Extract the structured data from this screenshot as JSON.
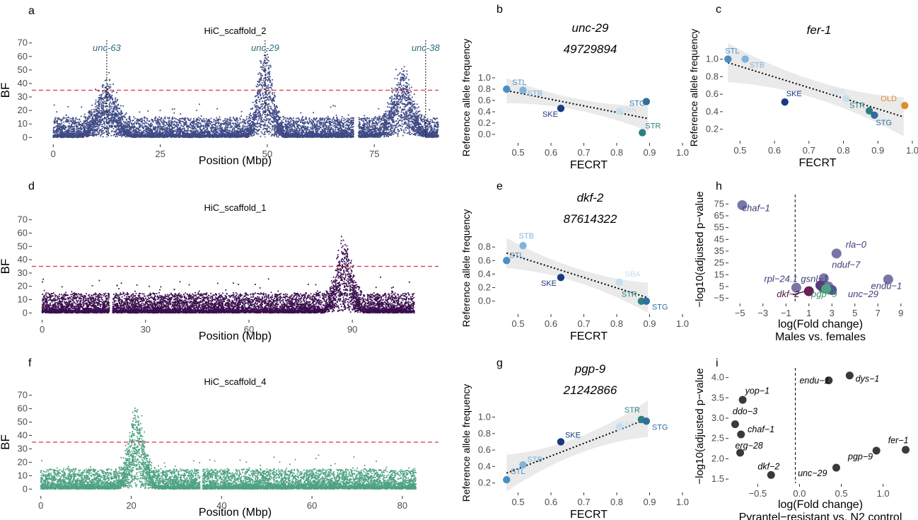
{
  "chart_data": [
    {
      "panel": "a",
      "type": "scatter",
      "title": "HiC_scaffold_2",
      "xlabel": "Position (Mbp)",
      "ylabel": "BF",
      "xlim": [
        -5,
        90
      ],
      "ylim": [
        -3,
        73
      ],
      "xticks": [
        0,
        25,
        50,
        75
      ],
      "yticks": [
        0,
        10,
        20,
        30,
        40,
        50,
        60,
        70
      ],
      "threshold": 35,
      "color": "#3f4a85",
      "gaps": [
        [
          70.2,
          71.3
        ]
      ],
      "xmax": 90,
      "peaks": [
        {
          "pos": 49.5,
          "height": 63
        },
        {
          "pos": 81.5,
          "height": 45
        },
        {
          "pos": 12.5,
          "height": 35
        }
      ],
      "annotations": [
        {
          "label": "unc-63",
          "x": 12.5
        },
        {
          "label": "unc-29",
          "x": 49.5
        },
        {
          "label": "unc-38",
          "x": 87
        }
      ],
      "ann_color": "#2a6e7c"
    },
    {
      "panel": "d",
      "type": "scatter",
      "title": "HiC_scaffold_1",
      "xlabel": "Position (Mbp)",
      "ylabel": "BF",
      "xlim": [
        -3,
        115
      ],
      "ylim": [
        -3,
        73
      ],
      "xticks": [
        0,
        30,
        60,
        90
      ],
      "yticks": [
        0,
        10,
        20,
        30,
        40,
        50,
        60,
        70
      ],
      "threshold": 35,
      "color": "#3b0f4f",
      "gaps": [
        [
          19.5,
          20.5
        ]
      ],
      "xmax": 108,
      "peaks": [
        {
          "pos": 87.6,
          "height": 50
        }
      ],
      "annotations": []
    },
    {
      "panel": "f",
      "type": "scatter",
      "title": "HiC_scaffold_4",
      "xlabel": "Position (Mbp)",
      "ylabel": "BF",
      "xlim": [
        -2,
        88
      ],
      "ylim": [
        -3,
        73
      ],
      "xticks": [
        0,
        20,
        40,
        60,
        80
      ],
      "yticks": [
        0,
        10,
        20,
        30,
        40,
        50,
        60,
        70
      ],
      "threshold": 35,
      "color": "#4fa383",
      "gaps": [
        [
          35.2,
          35.8
        ]
      ],
      "xmax": 83,
      "peaks": [
        {
          "pos": 21.2,
          "height": 58
        }
      ],
      "annotations": []
    },
    {
      "panel": "b",
      "type": "scatter",
      "title": "unc-29",
      "subtitle": "49729894",
      "xlabel": "FECRT",
      "ylabel": "Reference allele frequency",
      "xlim": [
        0.43,
        1.0
      ],
      "ylim": [
        -0.1,
        1.25
      ],
      "xticks": [
        0.5,
        0.6,
        0.7,
        0.8,
        0.9,
        1.0
      ],
      "xticklabels": [
        "0.5",
        "0.6",
        "0.7",
        "0.8",
        "0.9",
        "1.0"
      ],
      "yticks": [
        0.0,
        0.2,
        0.4,
        0.6,
        0.8,
        1.0
      ],
      "yticklabels": [
        "0.0",
        "0.2",
        "0.4",
        "0.6",
        "0.8",
        "1.0"
      ],
      "fit": {
        "x0": 0.465,
        "y0": 0.775,
        "x1": 0.895,
        "y1": 0.28
      },
      "points": [
        {
          "label": "STL",
          "x": 0.465,
          "y": 0.8,
          "color": "#4a8fc2",
          "dx": 8,
          "dy": -6
        },
        {
          "label": "STB",
          "x": 0.515,
          "y": 0.78,
          "color": "#7fb4d9",
          "dx": 6,
          "dy": 8
        },
        {
          "label": "SKE",
          "x": 0.63,
          "y": 0.46,
          "color": "#1a3a80",
          "dx": -26,
          "dy": 12
        },
        {
          "label": "SBA",
          "x": 0.808,
          "y": 0.41,
          "color": "#c6dff0",
          "dx": 2,
          "dy": 2
        },
        {
          "label": "STG",
          "x": 0.89,
          "y": 0.58,
          "color": "#2f6f9f",
          "dx": -24,
          "dy": 6
        },
        {
          "label": "STR",
          "x": 0.878,
          "y": 0.03,
          "color": "#2d7f82",
          "dx": 4,
          "dy": -6
        }
      ]
    },
    {
      "panel": "c",
      "type": "scatter",
      "title": "fer-1",
      "subtitle": "",
      "xlabel": "FECRT",
      "ylabel": "Reference allele frequency",
      "xlim": [
        0.45,
        1.0
      ],
      "ylim": [
        0.1,
        1.15
      ],
      "xticks": [
        0.5,
        0.6,
        0.7,
        0.8,
        0.9,
        1.0
      ],
      "xticklabels": [
        "0.5",
        "0.6",
        "0.7",
        "0.8",
        "0.9",
        "1.0"
      ],
      "yticks": [
        0.2,
        0.4,
        0.6,
        0.8,
        1.0
      ],
      "yticklabels": [
        "0.2",
        "0.4",
        "0.6",
        "0.8",
        "1.0"
      ],
      "fit": {
        "x0": 0.465,
        "y0": 0.96,
        "x1": 0.975,
        "y1": 0.34
      },
      "points": [
        {
          "label": "STL",
          "x": 0.465,
          "y": 1.0,
          "color": "#4a8fc2",
          "dx": -4,
          "dy": -8
        },
        {
          "label": "STB",
          "x": 0.515,
          "y": 1.0,
          "color": "#7fb4d9",
          "dx": 6,
          "dy": 12
        },
        {
          "label": "SKE",
          "x": 0.63,
          "y": 0.51,
          "color": "#1a3a80",
          "dx": 2,
          "dy": -8
        },
        {
          "label": "SBA",
          "x": 0.808,
          "y": 0.55,
          "color": "#c6dff0",
          "dx": -24,
          "dy": -6
        },
        {
          "label": "STR",
          "x": 0.875,
          "y": 0.41,
          "color": "#2d7f82",
          "dx": -28,
          "dy": -4
        },
        {
          "label": "STG",
          "x": 0.89,
          "y": 0.36,
          "color": "#2f6f9f",
          "dx": 2,
          "dy": 14
        },
        {
          "label": "OLD",
          "x": 0.978,
          "y": 0.47,
          "color": "#e08c2e",
          "dx": -34,
          "dy": -6
        }
      ]
    },
    {
      "panel": "e",
      "type": "scatter",
      "title": "dkf-2",
      "subtitle": "87614322",
      "xlabel": "FECRT",
      "ylabel": "Reference allele frequency",
      "xlim": [
        0.43,
        1.0
      ],
      "ylim": [
        -0.15,
        1.0
      ],
      "xticks": [
        0.5,
        0.6,
        0.7,
        0.8,
        0.9,
        1.0
      ],
      "xticklabels": [
        "0.5",
        "0.6",
        "0.7",
        "0.8",
        "0.9",
        "1.0"
      ],
      "yticks": [
        0.0,
        0.2,
        0.4,
        0.6,
        0.8
      ],
      "yticklabels": [
        "0.0",
        "0.2",
        "0.4",
        "0.6",
        "0.8"
      ],
      "fit": {
        "x0": 0.465,
        "y0": 0.71,
        "x1": 0.895,
        "y1": 0.05
      },
      "points": [
        {
          "label": "STB",
          "x": 0.515,
          "y": 0.82,
          "color": "#7fb4d9",
          "dx": -6,
          "dy": -10
        },
        {
          "label": "STL",
          "x": 0.465,
          "y": 0.6,
          "color": "#4a8fc2",
          "dx": 4,
          "dy": -4
        },
        {
          "label": "SKE",
          "x": 0.63,
          "y": 0.35,
          "color": "#1a3a80",
          "dx": -28,
          "dy": 12
        },
        {
          "label": "SBA",
          "x": 0.808,
          "y": 0.28,
          "color": "#c6dff0",
          "dx": 8,
          "dy": -8
        },
        {
          "label": "STR",
          "x": 0.875,
          "y": 0.0,
          "color": "#2d7f82",
          "dx": -28,
          "dy": -6
        },
        {
          "label": "STG",
          "x": 0.89,
          "y": 0.0,
          "color": "#2f6f9f",
          "dx": 8,
          "dy": 12
        }
      ]
    },
    {
      "panel": "g",
      "type": "scatter",
      "title": "pgp-9",
      "subtitle": "21242866",
      "xlabel": "FECRT",
      "ylabel": "Reference allele frequency",
      "xlim": [
        0.43,
        1.0
      ],
      "ylim": [
        0.12,
        1.15
      ],
      "xticks": [
        0.5,
        0.6,
        0.7,
        0.8,
        0.9,
        1.0
      ],
      "xticklabels": [
        "0.5",
        "0.6",
        "0.7",
        "0.8",
        "0.9",
        "1.0"
      ],
      "yticks": [
        0.2,
        0.4,
        0.6,
        0.8,
        1.0
      ],
      "yticklabels": [
        "0.2",
        "0.4",
        "0.6",
        "0.8",
        "1.0"
      ],
      "fit": {
        "x0": 0.465,
        "y0": 0.32,
        "x1": 0.895,
        "y1": 0.98
      },
      "points": [
        {
          "label": "STL",
          "x": 0.465,
          "y": 0.24,
          "color": "#4a8fc2",
          "dx": 6,
          "dy": -8
        },
        {
          "label": "STB",
          "x": 0.515,
          "y": 0.42,
          "color": "#7fb4d9",
          "dx": 6,
          "dy": -4
        },
        {
          "label": "SKE",
          "x": 0.63,
          "y": 0.7,
          "color": "#1a3a80",
          "dx": 6,
          "dy": -6
        },
        {
          "label": "SBA",
          "x": 0.808,
          "y": 0.88,
          "color": "#c6dff0",
          "dx": 0,
          "dy": 0
        },
        {
          "label": "STR",
          "x": 0.875,
          "y": 0.97,
          "color": "#2d7f82",
          "dx": -24,
          "dy": -10
        },
        {
          "label": "STG",
          "x": 0.89,
          "y": 0.95,
          "color": "#2f6f9f",
          "dx": 8,
          "dy": 12
        }
      ]
    },
    {
      "panel": "h",
      "type": "scatter",
      "title": "",
      "xlabel": "log(Fold change)",
      "xlabel2": "Males vs. females",
      "ylabel": "−log10(adjusted p−value",
      "xlim": [
        -6,
        10
      ],
      "ylim": [
        -7,
        80
      ],
      "xticks": [
        -5,
        -3,
        -1,
        1,
        3,
        5,
        7,
        9
      ],
      "xticklabels": [
        "−5",
        "−3",
        "−1",
        "1",
        "3",
        "5",
        "7",
        "9"
      ],
      "yticks": [
        -5,
        5,
        15,
        25,
        35,
        45,
        55,
        65,
        75
      ],
      "yticklabels": [
        "−5",
        "5",
        "15",
        "25",
        "35",
        "45",
        "55",
        "65",
        "75"
      ],
      "vline": -0.2,
      "points": [
        {
          "label": "chaf−1",
          "x": -4.8,
          "y": 74,
          "color": "#7876a6",
          "lx": -4.8,
          "ly": 69,
          "tcolor": "#3c3b78"
        },
        {
          "label": "rla−0",
          "x": 3.4,
          "y": 33,
          "color": "#7876a6",
          "lx": 4.2,
          "ly": 38,
          "tcolor": "#3c3b78"
        },
        {
          "label": "nduf−7",
          "x": 2.3,
          "y": 12,
          "color": "#7876a6",
          "lx": 3.0,
          "ly": 21,
          "tcolor": "#3c3b78"
        },
        {
          "label": "endu−1",
          "x": 7.9,
          "y": 11,
          "color": "#7876a6",
          "lx": 6.4,
          "ly": 3,
          "tcolor": "#3c3b78"
        },
        {
          "label": "gsnl−1",
          "x": 2.0,
          "y": 6,
          "color": "#5a3a7a",
          "lx": 0.3,
          "ly": 9,
          "tcolor": "#3c3b78"
        },
        {
          "label": "rpl−24.1",
          "x": -0.1,
          "y": 4,
          "color": "#7876a6",
          "lx": -2.9,
          "ly": 9,
          "tcolor": "#3c3b78"
        },
        {
          "label": "unc−29",
          "x": 3.0,
          "y": 2,
          "color": "#4a5a8a",
          "lx": 4.4,
          "ly": -4,
          "tcolor": "#3c3b78"
        },
        {
          "label": "pgp−9",
          "x": 2.5,
          "y": 3,
          "color": "#4fa383",
          "lx": 1.2,
          "ly": -4,
          "tcolor": "#3c8f6e"
        },
        {
          "label": "dkf−2",
          "x": 1.0,
          "y": 1,
          "color": "#6b1f58",
          "lx": -1.8,
          "ly": -4,
          "tcolor": "#4a1744"
        }
      ],
      "extra_points": [
        {
          "x": 2.2,
          "y": 4,
          "color": "#2d7f82"
        },
        {
          "x": 2.7,
          "y": 5,
          "color": "#7876a6"
        }
      ]
    },
    {
      "panel": "i",
      "type": "scatter",
      "title": "",
      "xlabel": "log(Fold change)",
      "xlabel2": "Pyrantel−resistant vs. N2 control",
      "ylabel": "−log10(adjusted p−value",
      "xlim": [
        -0.85,
        1.35
      ],
      "ylim": [
        1.45,
        4.15
      ],
      "xticks": [
        -0.5,
        0.0,
        0.5,
        1.0
      ],
      "xticklabels": [
        "−0.5",
        "0.0",
        "0.5",
        "1.0"
      ],
      "yticks": [
        1.5,
        2.0,
        2.5,
        3.0,
        3.5,
        4.0
      ],
      "yticklabels": [
        "1.5",
        "2.0",
        "2.5",
        "3.0",
        "3.5",
        "4.0"
      ],
      "vline": -0.05,
      "points": [
        {
          "label": "dys−1",
          "x": 0.6,
          "y": 4.05,
          "color": "#3a3a3a",
          "lx": 0.67,
          "ly": 3.9,
          "tcolor": "#000"
        },
        {
          "label": "endu−1",
          "x": 0.35,
          "y": 3.93,
          "color": "#3a3a3a",
          "lx": 0.0,
          "ly": 3.85,
          "tcolor": "#000"
        },
        {
          "label": "yop−1",
          "x": -0.68,
          "y": 3.45,
          "color": "#3a3a3a",
          "lx": -0.65,
          "ly": 3.6,
          "tcolor": "#000"
        },
        {
          "label": "ddo−3",
          "x": -0.77,
          "y": 2.85,
          "color": "#3a3a3a",
          "lx": -0.8,
          "ly": 3.1,
          "tcolor": "#000"
        },
        {
          "label": "chaf−1",
          "x": -0.7,
          "y": 2.6,
          "color": "#3a3a3a",
          "lx": -0.62,
          "ly": 2.65,
          "tcolor": "#000"
        },
        {
          "label": "erg−28",
          "x": -0.71,
          "y": 2.15,
          "color": "#3a3a3a",
          "lx": -0.77,
          "ly": 2.25,
          "tcolor": "#000"
        },
        {
          "label": "fer−1",
          "x": 1.27,
          "y": 2.22,
          "color": "#3a3a3a",
          "lx": 1.06,
          "ly": 2.38,
          "tcolor": "#000"
        },
        {
          "label": "pgp−9",
          "x": 0.92,
          "y": 2.2,
          "color": "#3a3a3a",
          "lx": 0.58,
          "ly": 1.98,
          "tcolor": "#000"
        },
        {
          "label": "dkf−2",
          "x": -0.34,
          "y": 1.6,
          "color": "#3a3a3a",
          "lx": -0.5,
          "ly": 1.74,
          "tcolor": "#000"
        },
        {
          "label": "unc−29",
          "x": 0.44,
          "y": 1.78,
          "color": "#3a3a3a",
          "lx": -0.02,
          "ly": 1.57,
          "tcolor": "#000"
        }
      ]
    }
  ],
  "panel_letters": [
    "a",
    "b",
    "c",
    "d",
    "e",
    "f",
    "g",
    "h",
    "i"
  ],
  "ci_band_color": "#e6e6e6"
}
